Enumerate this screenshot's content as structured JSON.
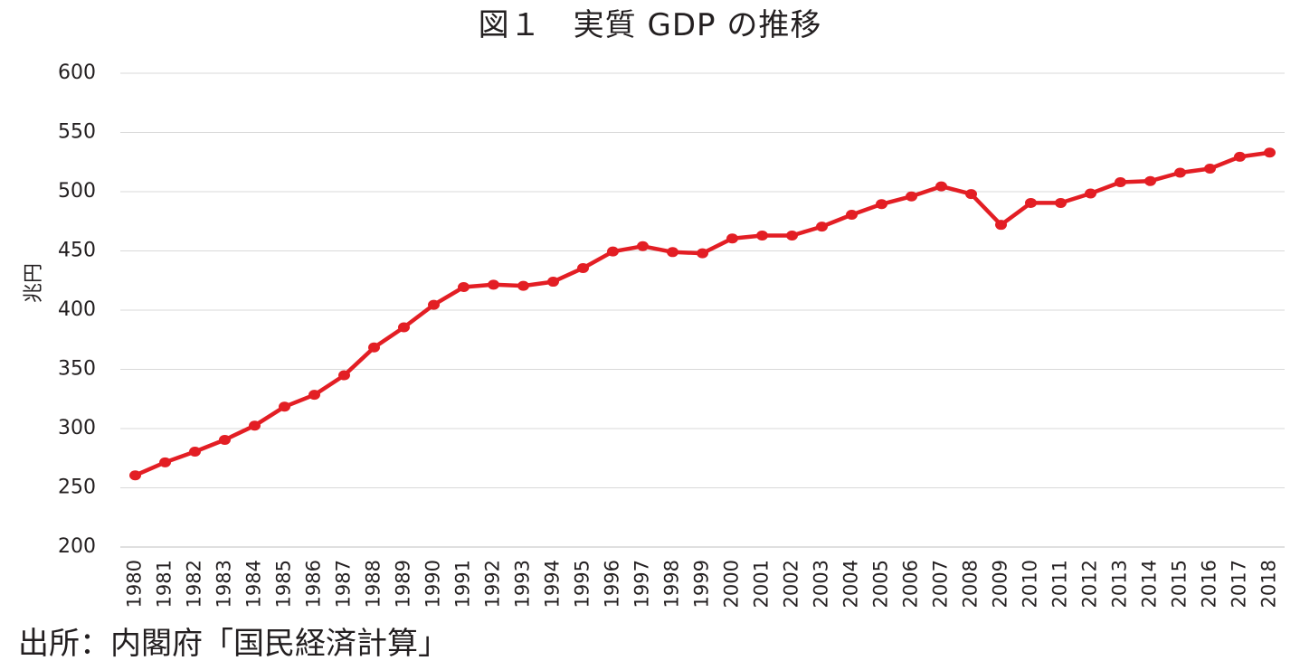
{
  "chart_data": {
    "type": "line",
    "title": "図１　実質 GDP の推移",
    "xlabel": "",
    "ylabel": "兆円",
    "ylim": [
      200,
      600
    ],
    "yticks": [
      200,
      250,
      300,
      350,
      400,
      450,
      500,
      550,
      600
    ],
    "grid": true,
    "legend": "none",
    "categories": [
      "1980",
      "1981",
      "1982",
      "1983",
      "1984",
      "1985",
      "1986",
      "1987",
      "1988",
      "1989",
      "1990",
      "1991",
      "1992",
      "1993",
      "1994",
      "1995",
      "1996",
      "1997",
      "1998",
      "1999",
      "2000",
      "2001",
      "2002",
      "2003",
      "2004",
      "2005",
      "2006",
      "2007",
      "2008",
      "2009",
      "2010",
      "2011",
      "2012",
      "2013",
      "2014",
      "2015",
      "2016",
      "2017",
      "2018"
    ],
    "series": [
      {
        "color": "#e31e24",
        "values": [
          260.5,
          271.5,
          280.5,
          290.5,
          302.5,
          318.5,
          328.5,
          345,
          368.5,
          385.5,
          404.5,
          419.5,
          421.5,
          420.5,
          424,
          435.5,
          449.5,
          454,
          449,
          448,
          460.5,
          463,
          463,
          470.5,
          480.5,
          489.5,
          496,
          504.5,
          498,
          472,
          490.5,
          490.5,
          498.5,
          508,
          509,
          516,
          519.5,
          529.5,
          533
        ]
      }
    ]
  },
  "footer": {
    "source": "出所：内閣府「国民経済計算」"
  }
}
